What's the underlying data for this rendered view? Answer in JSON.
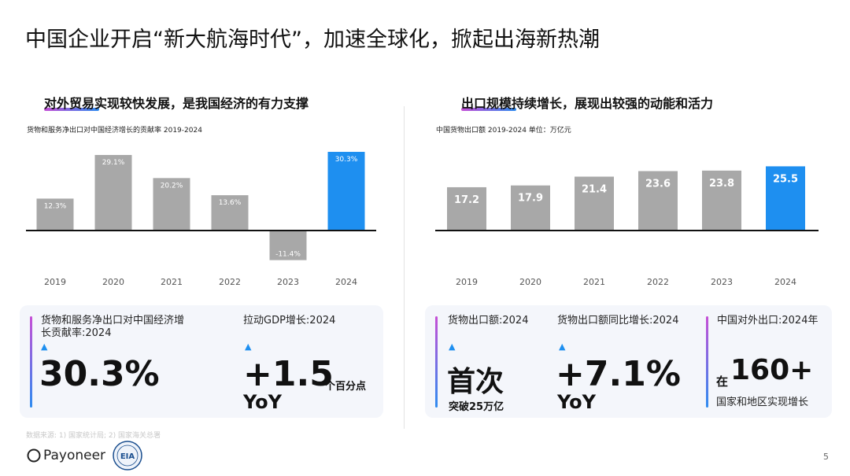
{
  "title": "中国企业开启“新大航海时代”，加速全球化，掀起出海新热潮",
  "left": {
    "heading": "对外贸易实现较快发展，是我国经济的有力支撑",
    "subtitle": "货物和服务净出口对中国经济增长的贡献率 2019-2024",
    "kpi1_label": "货物和服务净出口对中国经济增长贡献率:2024",
    "kpi1_value": "30.3%",
    "kpi2_label": "拉动GDP增长:2024",
    "kpi2_value": "+1.5",
    "kpi2_unit": "个百分点",
    "kpi2_yoy": "YoY"
  },
  "right": {
    "heading": "出口规模持续增长，展现出较强的动能和活力",
    "subtitle": "中国货物出口额 2019-2024  单位：万亿元",
    "kpi1_label": "货物出口额:2024",
    "kpi1_value": "首次",
    "kpi1_sub": "突破25万亿",
    "kpi2_label": "货物出口额同比增长:2024",
    "kpi2_value": "+7.1%",
    "kpi2_yoy": "YoY",
    "kpi3_label": "中国对外出口:2024年",
    "kpi3_prefix": "在",
    "kpi3_value": "160+",
    "kpi3_sub": "国家和地区实现增长"
  },
  "triangle": "▲",
  "footnote": "数据来源: 1) 国家统计局; 2) 国家海关总署",
  "logo": {
    "name": "Payoneer",
    "seal_text": "EIA"
  },
  "page_number": "5",
  "colors": {
    "bar_gray": "#a8a8a8",
    "bar_highlight": "#1e8ff0",
    "accent_pink": "#c64fd6",
    "accent_blue": "#2f8cf0"
  },
  "chart_data": [
    {
      "type": "bar",
      "categories": [
        "2019",
        "2020",
        "2021",
        "2022",
        "2023",
        "2024"
      ],
      "values": [
        12.3,
        29.1,
        20.2,
        13.6,
        -11.4,
        30.3
      ],
      "value_labels": [
        "12.3%",
        "29.1%",
        "20.2%",
        "13.6%",
        "-11.4%",
        "30.3%"
      ],
      "title": "货物和服务净出口对中国经济增长的贡献率 2019-2024",
      "highlight_index": 5
    },
    {
      "type": "bar",
      "categories": [
        "2019",
        "2020",
        "2021",
        "2022",
        "2023",
        "2024"
      ],
      "values": [
        17.2,
        17.9,
        21.4,
        23.6,
        23.8,
        25.5
      ],
      "value_labels": [
        "17.2",
        "17.9",
        "21.4",
        "23.6",
        "23.8",
        "25.5"
      ],
      "title": "中国货物出口额 2019-2024  单位：万亿元",
      "highlight_index": 5
    }
  ]
}
